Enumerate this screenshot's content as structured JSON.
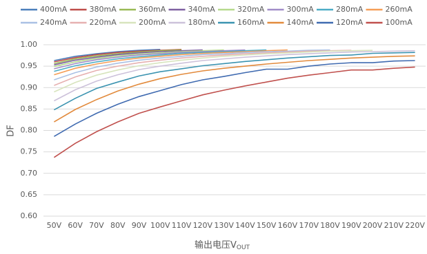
{
  "chart_data": {
    "type": "line",
    "xlabel": "输出电压V",
    "xlabel_sub": "OUT",
    "ylabel": "DF",
    "categories": [
      "50V",
      "60V",
      "70V",
      "80V",
      "90V",
      "100V",
      "110V",
      "120V",
      "130V",
      "140V",
      "150V",
      "160V",
      "170V",
      "180V",
      "190V",
      "200V",
      "210V",
      "220V"
    ],
    "ylim": [
      0.6,
      1.0
    ],
    "yticks": [
      {
        "value": 0.6,
        "label": "0.60"
      },
      {
        "value": 0.65,
        "label": "0.65"
      },
      {
        "value": 0.7,
        "label": "0.70"
      },
      {
        "value": 0.75,
        "label": "0.75"
      },
      {
        "value": 0.8,
        "label": "0.80"
      },
      {
        "value": 0.85,
        "label": "0.85"
      },
      {
        "value": 0.9,
        "label": "0.90"
      },
      {
        "value": 0.95,
        "label": "0.95"
      },
      {
        "value": 1.0,
        "label": "1.00"
      }
    ],
    "grid": true,
    "series": [
      {
        "name": "400mA",
        "color": "#4a7ebb",
        "values": [
          0.963,
          0.973,
          0.979,
          0.984,
          0.987,
          0.989,
          null,
          null,
          null,
          null,
          null,
          null,
          null,
          null,
          null,
          null,
          null,
          null
        ]
      },
      {
        "name": "380mA",
        "color": "#be4b48",
        "values": [
          0.96,
          0.97,
          0.977,
          0.982,
          0.985,
          0.987,
          0.989,
          null,
          null,
          null,
          null,
          null,
          null,
          null,
          null,
          null,
          null,
          null
        ]
      },
      {
        "name": "360mA",
        "color": "#98b954",
        "values": [
          0.956,
          0.967,
          0.974,
          0.979,
          0.983,
          0.986,
          0.988,
          null,
          null,
          null,
          null,
          null,
          null,
          null,
          null,
          null,
          null,
          null
        ]
      },
      {
        "name": "340mA",
        "color": "#7d5fa0",
        "values": [
          0.953,
          0.964,
          0.971,
          0.977,
          0.981,
          0.984,
          0.986,
          0.988,
          null,
          null,
          null,
          null,
          null,
          null,
          null,
          null,
          null,
          null
        ]
      },
      {
        "name": "320mA",
        "color": "#b5d98c",
        "values": [
          0.949,
          0.96,
          0.968,
          0.974,
          0.978,
          0.981,
          0.984,
          0.986,
          0.988,
          null,
          null,
          null,
          null,
          null,
          null,
          null,
          null,
          null
        ]
      },
      {
        "name": "300mA",
        "color": "#a08cc8",
        "values": [
          0.944,
          0.956,
          0.965,
          0.971,
          0.976,
          0.979,
          0.982,
          0.984,
          0.986,
          0.988,
          null,
          null,
          null,
          null,
          null,
          null,
          null,
          null
        ]
      },
      {
        "name": "280mA",
        "color": "#4bacc6",
        "values": [
          0.938,
          0.951,
          0.96,
          0.967,
          0.972,
          0.976,
          0.98,
          0.982,
          0.984,
          0.986,
          0.988,
          null,
          null,
          null,
          null,
          null,
          null,
          null
        ]
      },
      {
        "name": "260mA",
        "color": "#f59d56",
        "values": [
          0.93,
          0.945,
          0.955,
          0.963,
          0.969,
          0.973,
          0.977,
          0.98,
          0.982,
          0.984,
          0.986,
          0.988,
          null,
          null,
          null,
          null,
          null,
          null
        ]
      },
      {
        "name": "240mA",
        "color": "#a9c0e4",
        "values": [
          0.918,
          0.935,
          0.948,
          0.957,
          0.964,
          0.969,
          0.973,
          0.977,
          0.979,
          0.982,
          0.984,
          0.985,
          0.987,
          0.988,
          null,
          null,
          null,
          null
        ]
      },
      {
        "name": "220mA",
        "color": "#e6b0b0",
        "values": [
          0.905,
          0.925,
          0.94,
          0.95,
          0.958,
          0.964,
          0.969,
          0.973,
          0.976,
          0.979,
          0.981,
          0.983,
          0.985,
          0.986,
          0.987,
          null,
          null,
          null
        ]
      },
      {
        "name": "200mA",
        "color": "#d7e4bd",
        "values": [
          0.89,
          0.912,
          0.929,
          0.941,
          0.951,
          0.958,
          0.964,
          0.969,
          0.973,
          0.976,
          0.979,
          0.981,
          0.983,
          0.985,
          0.986,
          0.987,
          null,
          null
        ]
      },
      {
        "name": "180mA",
        "color": "#ccc1da",
        "values": [
          0.869,
          0.895,
          0.915,
          0.93,
          0.942,
          0.95,
          0.957,
          0.963,
          0.967,
          0.971,
          0.974,
          0.977,
          0.979,
          0.981,
          0.983,
          0.984,
          0.985,
          0.986
        ]
      },
      {
        "name": "160mA",
        "color": "#3a93b0",
        "values": [
          0.848,
          0.875,
          0.898,
          0.913,
          0.927,
          0.937,
          0.944,
          0.951,
          0.956,
          0.961,
          0.965,
          0.969,
          0.972,
          0.975,
          0.976,
          0.98,
          0.981,
          0.982
        ]
      },
      {
        "name": "140mA",
        "color": "#e28a3c",
        "values": [
          0.82,
          0.849,
          0.872,
          0.892,
          0.908,
          0.921,
          0.931,
          0.939,
          0.945,
          0.95,
          0.955,
          0.959,
          0.963,
          0.966,
          0.969,
          0.971,
          0.973,
          0.974
        ]
      },
      {
        "name": "120mA",
        "color": "#3f6ab0",
        "values": [
          0.786,
          0.815,
          0.84,
          0.861,
          0.879,
          0.893,
          0.907,
          0.918,
          0.926,
          0.935,
          0.943,
          0.943,
          0.95,
          0.955,
          0.958,
          0.958,
          0.962,
          0.963
        ]
      },
      {
        "name": "100mA",
        "color": "#c0504d",
        "values": [
          0.737,
          0.77,
          0.797,
          0.82,
          0.84,
          0.855,
          0.869,
          0.883,
          0.894,
          0.904,
          0.913,
          0.922,
          0.929,
          0.935,
          0.941,
          0.941,
          0.945,
          0.948
        ]
      }
    ]
  }
}
